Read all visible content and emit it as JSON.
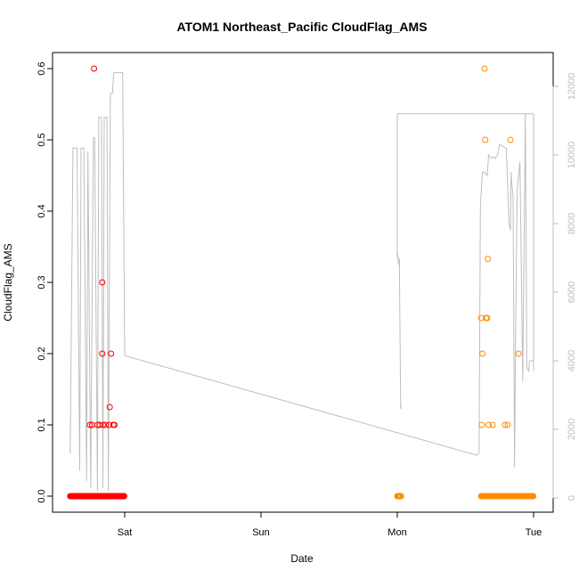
{
  "chart_data": {
    "type": "scatter",
    "title": "ATOM1 Northeast_Pacific CloudFlag_AMS",
    "xlabel": "Date",
    "ylabel": "CloudFlag_AMS",
    "x_ticks": [
      "Sat",
      "Sun",
      "Mon",
      "Tue"
    ],
    "y_ticks": [
      "0.0",
      "0.1",
      "0.2",
      "0.3",
      "0.4",
      "0.5",
      "0.6"
    ],
    "y_range": [
      0,
      0.6
    ],
    "x_range_days": [
      -0.42,
      3.14
    ],
    "y2_ticks": [
      "0",
      "2000",
      "4000",
      "6000",
      "8000",
      "10000",
      "12000"
    ],
    "y2_range": [
      0,
      12500
    ],
    "y2_label": "",
    "colors": {
      "red": "#ff0000",
      "orange": "#ff8c00",
      "altitude": "#bebebe"
    },
    "series": [
      {
        "color": "red",
        "points": [
          {
            "x": -0.255,
            "y": 0.1
          },
          {
            "x": -0.24,
            "y": 0.1
          },
          {
            "x": -0.225,
            "y": 0.6
          },
          {
            "x": -0.2,
            "y": 0.1
          },
          {
            "x": -0.185,
            "y": 0.1
          },
          {
            "x": -0.165,
            "y": 0.3
          },
          {
            "x": -0.165,
            "y": 0.2
          },
          {
            "x": -0.16,
            "y": 0.1
          },
          {
            "x": -0.14,
            "y": 0.1
          },
          {
            "x": -0.115,
            "y": 0.1
          },
          {
            "x": -0.11,
            "y": 0.125
          },
          {
            "x": -0.1,
            "y": 0.2
          },
          {
            "x": -0.085,
            "y": 0.1
          },
          {
            "x": -0.075,
            "y": 0.1
          }
        ],
        "zero_ranges": [
          [
            -0.4,
            0.0
          ]
        ]
      },
      {
        "color": "orange",
        "points": [
          {
            "x": 2.615,
            "y": 0.25
          },
          {
            "x": 2.625,
            "y": 0.2
          },
          {
            "x": 2.62,
            "y": 0.1
          },
          {
            "x": 2.64,
            "y": 0.6
          },
          {
            "x": 2.645,
            "y": 0.5
          },
          {
            "x": 2.65,
            "y": 0.25
          },
          {
            "x": 2.66,
            "y": 0.25
          },
          {
            "x": 2.665,
            "y": 0.333
          },
          {
            "x": 2.67,
            "y": 0.1
          },
          {
            "x": 2.7,
            "y": 0.1
          },
          {
            "x": 2.79,
            "y": 0.1
          },
          {
            "x": 2.81,
            "y": 0.1
          },
          {
            "x": 2.83,
            "y": 0.5
          },
          {
            "x": 2.89,
            "y": 0.2
          }
        ],
        "zero_ranges": [
          [
            2.0,
            2.03
          ],
          [
            2.615,
            3.0
          ]
        ]
      }
    ],
    "altitude_line": [
      [
        -0.4,
        1300
      ],
      [
        -0.38,
        10200
      ],
      [
        -0.35,
        10200
      ],
      [
        -0.33,
        800
      ],
      [
        -0.32,
        10200
      ],
      [
        -0.3,
        10200
      ],
      [
        -0.28,
        500
      ],
      [
        -0.27,
        10100
      ],
      [
        -0.25,
        300
      ],
      [
        -0.23,
        10500
      ],
      [
        -0.22,
        10500
      ],
      [
        -0.2,
        200
      ],
      [
        -0.19,
        11100
      ],
      [
        -0.17,
        11100
      ],
      [
        -0.16,
        300
      ],
      [
        -0.15,
        11100
      ],
      [
        -0.13,
        11100
      ],
      [
        -0.12,
        200
      ],
      [
        -0.105,
        11800
      ],
      [
        -0.09,
        11800
      ],
      [
        -0.08,
        12400
      ],
      [
        -0.015,
        12400
      ],
      [
        0.0,
        4150
      ],
      [
        2.58,
        1250
      ],
      [
        2.6,
        1300
      ],
      [
        2.61,
        8500
      ],
      [
        2.625,
        9500
      ],
      [
        2.64,
        9500
      ],
      [
        2.66,
        9400
      ],
      [
        2.67,
        10000
      ],
      [
        2.69,
        9900
      ],
      [
        2.71,
        9950
      ],
      [
        2.72,
        9900
      ],
      [
        2.735,
        10000
      ],
      [
        2.75,
        10300
      ],
      [
        2.8,
        10200
      ],
      [
        2.82,
        8000
      ],
      [
        2.83,
        7800
      ],
      [
        2.835,
        9500
      ],
      [
        2.84,
        9200
      ],
      [
        2.85,
        8800
      ],
      [
        2.86,
        900
      ],
      [
        2.87,
        5500
      ],
      [
        2.88,
        9000
      ],
      [
        2.9,
        9800
      ],
      [
        2.92,
        3400
      ],
      [
        2.94,
        11200
      ],
      [
        2.95,
        3800
      ],
      [
        2.965,
        3700
      ],
      [
        2.97,
        4000
      ],
      [
        3.0,
        4000
      ]
    ],
    "altitude_line_mon": [
      [
        2.0,
        7200
      ],
      [
        2.01,
        6800
      ],
      [
        2.015,
        7000
      ],
      [
        2.025,
        2600
      ],
      [
        2.03,
        2700
      ]
    ],
    "altitude_line_top": [
      [
        2.0,
        11200
      ],
      [
        3.0,
        11200
      ]
    ]
  }
}
